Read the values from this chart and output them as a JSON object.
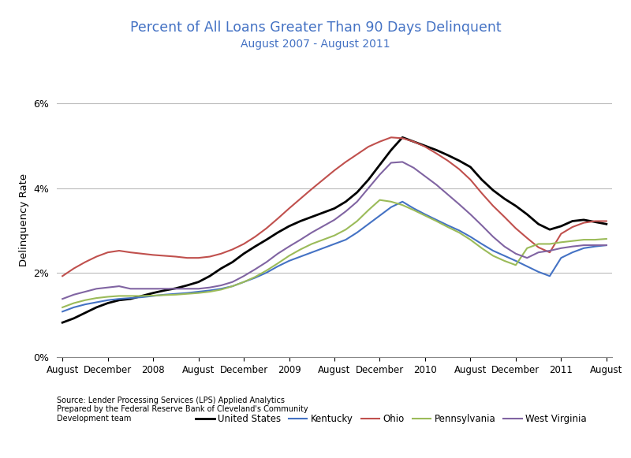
{
  "title": "Percent of All Loans Greater Than 90 Days Delinquent",
  "subtitle": "August 2007 - August 2011",
  "ylabel": "Delinquency Rate",
  "source_text": "Source: Lender Processing Services (LPS) Applied Analytics\nPrepared by the Federal Reserve Bank of Cleveland's Community\nDevelopment team",
  "title_color": "#4472C4",
  "subtitle_color": "#4472C4",
  "ylim": [
    0,
    0.065
  ],
  "yticks": [
    0,
    0.02,
    0.04,
    0.06
  ],
  "ytick_labels": [
    "0%",
    "2%",
    "4%",
    "6%"
  ],
  "x_tick_labels": [
    "August",
    "December",
    "2008",
    "August",
    "December",
    "2009",
    "August",
    "December",
    "2010",
    "August",
    "December",
    "2011",
    "August"
  ],
  "series": {
    "United States": {
      "color": "#000000",
      "linewidth": 2.0,
      "values": [
        0.0082,
        0.0092,
        0.0105,
        0.0118,
        0.0128,
        0.0135,
        0.0138,
        0.0145,
        0.0152,
        0.0158,
        0.0163,
        0.017,
        0.0178,
        0.0192,
        0.021,
        0.0225,
        0.0245,
        0.0262,
        0.0278,
        0.0295,
        0.031,
        0.0322,
        0.0332,
        0.0342,
        0.0352,
        0.0368,
        0.039,
        0.042,
        0.0455,
        0.049,
        0.052,
        0.051,
        0.05,
        0.049,
        0.0478,
        0.0465,
        0.045,
        0.042,
        0.0395,
        0.0375,
        0.0358,
        0.0338,
        0.0315,
        0.0302,
        0.031,
        0.0322,
        0.0325,
        0.032,
        0.0315
      ]
    },
    "Kentucky": {
      "color": "#4472C4",
      "linewidth": 1.5,
      "values": [
        0.0108,
        0.0118,
        0.0125,
        0.013,
        0.0135,
        0.0138,
        0.014,
        0.0142,
        0.0145,
        0.0148,
        0.015,
        0.0152,
        0.0155,
        0.0158,
        0.0162,
        0.0168,
        0.0178,
        0.0188,
        0.02,
        0.0215,
        0.0228,
        0.0238,
        0.0248,
        0.0258,
        0.0268,
        0.0278,
        0.0295,
        0.0315,
        0.0335,
        0.0355,
        0.0368,
        0.0352,
        0.0338,
        0.0325,
        0.0312,
        0.03,
        0.0285,
        0.0268,
        0.0252,
        0.024,
        0.0228,
        0.0215,
        0.0202,
        0.0192,
        0.0235,
        0.0248,
        0.0258,
        0.0262,
        0.0265
      ]
    },
    "Ohio": {
      "color": "#C0504D",
      "linewidth": 1.5,
      "values": [
        0.0192,
        0.021,
        0.0225,
        0.0238,
        0.0248,
        0.0252,
        0.0248,
        0.0245,
        0.0242,
        0.024,
        0.0238,
        0.0235,
        0.0235,
        0.0238,
        0.0245,
        0.0255,
        0.0268,
        0.0285,
        0.0305,
        0.0328,
        0.0352,
        0.0375,
        0.0398,
        0.042,
        0.0442,
        0.0462,
        0.048,
        0.0498,
        0.051,
        0.052,
        0.0518,
        0.051,
        0.0498,
        0.0482,
        0.0465,
        0.0445,
        0.042,
        0.0388,
        0.0358,
        0.0332,
        0.0305,
        0.0282,
        0.026,
        0.0248,
        0.0292,
        0.0308,
        0.0318,
        0.0322,
        0.0322
      ]
    },
    "Pennsylvania": {
      "color": "#9BBB59",
      "linewidth": 1.5,
      "values": [
        0.0118,
        0.0128,
        0.0135,
        0.014,
        0.0143,
        0.0145,
        0.0145,
        0.0145,
        0.0146,
        0.0147,
        0.0148,
        0.015,
        0.0152,
        0.0155,
        0.016,
        0.0168,
        0.0178,
        0.019,
        0.0205,
        0.0222,
        0.024,
        0.0255,
        0.0268,
        0.0278,
        0.0288,
        0.0302,
        0.0322,
        0.0348,
        0.0372,
        0.0368,
        0.036,
        0.0348,
        0.0335,
        0.0322,
        0.0308,
        0.0295,
        0.0278,
        0.0258,
        0.024,
        0.0228,
        0.0218,
        0.0258,
        0.0268,
        0.0268,
        0.0272,
        0.0275,
        0.0278,
        0.0278,
        0.028
      ]
    },
    "West Virginia": {
      "color": "#8064A2",
      "linewidth": 1.5,
      "values": [
        0.0138,
        0.0148,
        0.0155,
        0.0162,
        0.0165,
        0.0168,
        0.0162,
        0.0162,
        0.0162,
        0.0162,
        0.0162,
        0.0162,
        0.0162,
        0.0165,
        0.017,
        0.0178,
        0.0192,
        0.0208,
        0.0225,
        0.0245,
        0.0262,
        0.0278,
        0.0295,
        0.031,
        0.0325,
        0.0345,
        0.0368,
        0.04,
        0.0432,
        0.046,
        0.0462,
        0.0448,
        0.0428,
        0.0408,
        0.0385,
        0.0362,
        0.0338,
        0.0312,
        0.0285,
        0.0262,
        0.0245,
        0.0235,
        0.0248,
        0.0252,
        0.0258,
        0.0262,
        0.0265,
        0.0265,
        0.0265
      ]
    }
  }
}
